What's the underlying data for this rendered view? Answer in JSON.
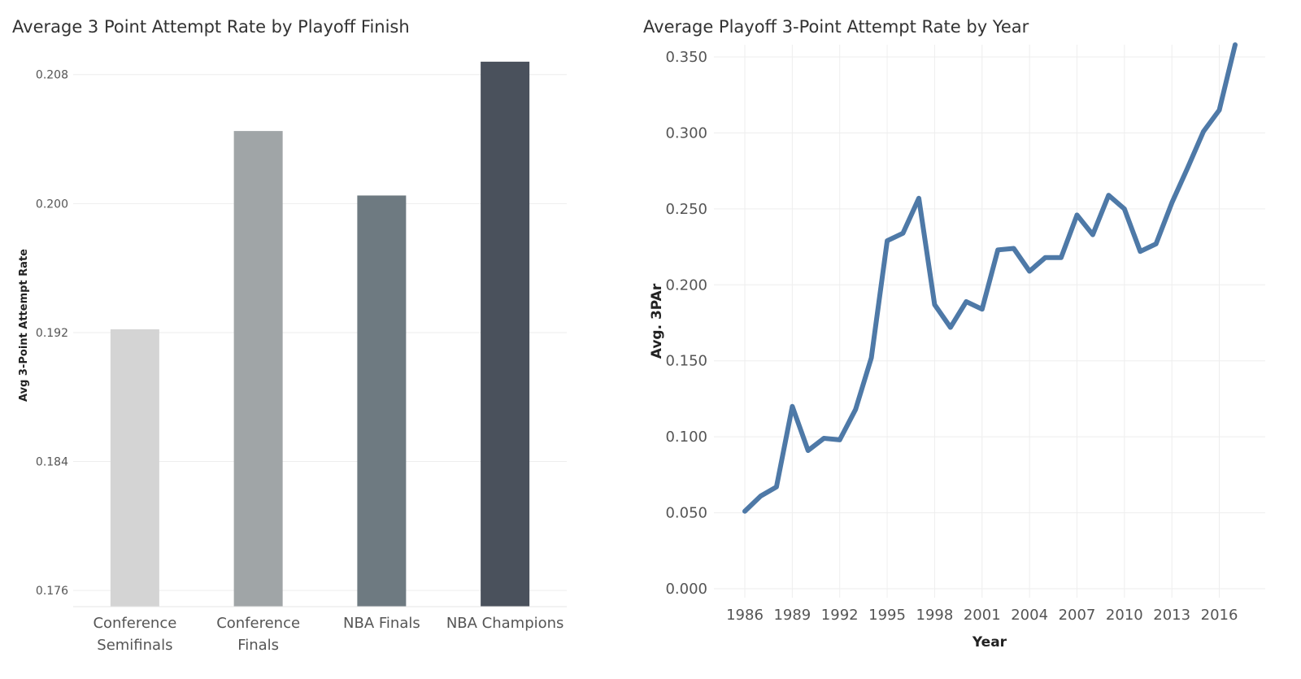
{
  "chart_data": [
    {
      "type": "bar",
      "title": "Average 3 Point Attempt Rate by Playoff Finish",
      "xlabel": "",
      "ylabel": "Avg 3-Point Attempt Rate",
      "categories": [
        [
          "Conference",
          "Semifinals"
        ],
        [
          "Conference",
          "Finals"
        ],
        [
          "NBA Finals"
        ],
        [
          "NBA Champions"
        ]
      ],
      "values": [
        0.1922,
        0.2045,
        0.2005,
        0.2088
      ],
      "colors": [
        "#d4d4d4",
        "#a0a5a7",
        "#6e7a81",
        "#4a515c"
      ],
      "ylim": [
        0.175,
        0.2096
      ],
      "yticks": [
        "0.176",
        "0.184",
        "0.192",
        "0.200",
        "0.208"
      ],
      "grid": true,
      "legend": "none"
    },
    {
      "type": "line",
      "title": "Average Playoff 3-Point Attempt Rate by Year",
      "xlabel": "Year",
      "ylabel": "Avg. 3PAr",
      "x": [
        1986,
        1987,
        1988,
        1989,
        1990,
        1991,
        1992,
        1993,
        1994,
        1995,
        1996,
        1997,
        1998,
        1999,
        2000,
        2001,
        2002,
        2003,
        2004,
        2005,
        2006,
        2007,
        2008,
        2009,
        2010,
        2011,
        2012,
        2013,
        2014,
        2015,
        2016,
        2017
      ],
      "series": [
        {
          "values": [
            0.051,
            0.061,
            0.067,
            0.12,
            0.091,
            0.099,
            0.098,
            0.118,
            0.152,
            0.229,
            0.234,
            0.257,
            0.187,
            0.172,
            0.189,
            0.184,
            0.223,
            0.224,
            0.209,
            0.218,
            0.218,
            0.246,
            0.233,
            0.259,
            0.25,
            0.222,
            0.227,
            0.254,
            0.277,
            0.301,
            0.315,
            0.358
          ],
          "color": "#4e79a7"
        }
      ],
      "xticks": [
        "1986",
        "1989",
        "1992",
        "1995",
        "1998",
        "2001",
        "2004",
        "2007",
        "2010",
        "2013",
        "2016"
      ],
      "yticks": [
        "0.000",
        "0.050",
        "0.100",
        "0.150",
        "0.200",
        "0.250",
        "0.300",
        "0.350"
      ],
      "ylim": [
        0.0,
        0.365
      ],
      "grid": true,
      "legend": "none"
    }
  ]
}
